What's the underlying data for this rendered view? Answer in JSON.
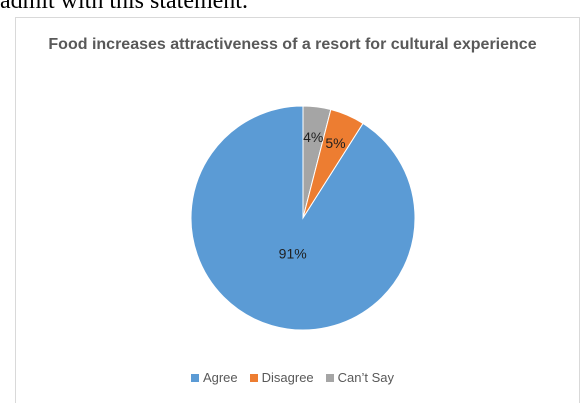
{
  "page": {
    "top_caption": "admit with this statement."
  },
  "colors": {
    "agree": "#5b9bd5",
    "disagree": "#ed7d31",
    "cant_say": "#a5a5a5"
  },
  "chart_data": {
    "type": "pie",
    "title": "Food increases attractiveness of a resort for cultural experience",
    "categories": [
      "Agree",
      "Disagree",
      "Can’t Say"
    ],
    "values": [
      91,
      5,
      4
    ],
    "data_labels": [
      "91%",
      "5%",
      "4%"
    ],
    "legend_placement": "bottom",
    "start_angle": "12 o'clock",
    "direction": "counter-clockwise"
  }
}
